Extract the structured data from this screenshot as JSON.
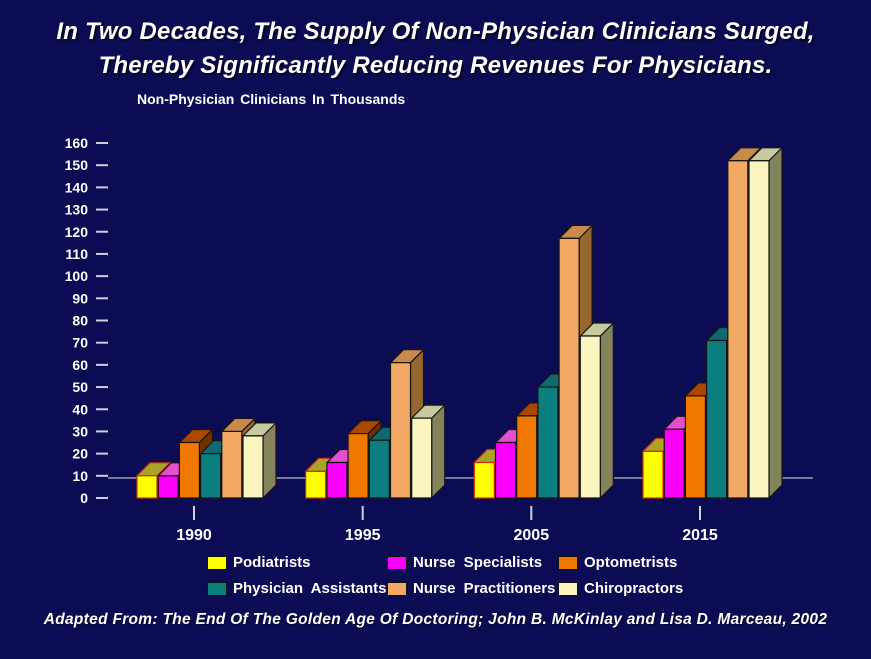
{
  "slide": {
    "title_line1": "In Two Decades, The Supply Of Non-Physician Clinicians Surged,",
    "title_line2": "Thereby Significantly Reducing Revenues For Physicians.",
    "citation": "Adapted From: The End Of The Golden Age Of Doctoring; John B. McKinlay and Lisa D. Marceau, 2002",
    "background_color": "#0C0C55",
    "text_color": "#FFFFFF"
  },
  "chart_data": {
    "type": "bar",
    "style": "3d-grouped-columns",
    "title": "Non-Physician Clinicians In Thousands",
    "categories": [
      "1990",
      "1995",
      "2005",
      "2015"
    ],
    "series": [
      {
        "name": "Podiatrists",
        "color": "#FFFF00",
        "top_color": "#A8A428",
        "side_color": "#7A7A10",
        "outline_color": "#CC3300",
        "values": [
          10,
          12,
          16,
          21
        ]
      },
      {
        "name": "Nurse Specialists",
        "color": "#FA00FA",
        "top_color": "#E44FD0",
        "side_color": "#90008E",
        "outline_color": "#151515",
        "values": [
          10,
          16,
          25,
          31
        ]
      },
      {
        "name": "Optometrists",
        "color": "#F07800",
        "top_color": "#AA4700",
        "side_color": "#703000",
        "outline_color": "#151515",
        "values": [
          25,
          29,
          37,
          46
        ]
      },
      {
        "name": "Physician Assistants",
        "color": "#0B7E80",
        "top_color": "#0E6A70",
        "side_color": "#07494F",
        "outline_color": "#151515",
        "values": [
          20,
          26,
          50,
          71
        ]
      },
      {
        "name": "Nurse Practitioners",
        "color": "#F2A963",
        "top_color": "#C8894B",
        "side_color": "#96672F",
        "outline_color": "#151515",
        "values": [
          30,
          61,
          117,
          152
        ]
      },
      {
        "name": "Chiropractors",
        "color": "#FAF4BE",
        "top_color": "#C6CA9E",
        "side_color": "#84835C",
        "outline_color": "#151515",
        "values": [
          28,
          36,
          73,
          152
        ]
      }
    ],
    "ylim": [
      0,
      160
    ],
    "ytick_step": 10,
    "grid": "single-floor-line",
    "legend_position": "bottom-two-rows",
    "axis_tick_color": "#CFCFDD",
    "floor_line_color": "#9C9CB8"
  }
}
